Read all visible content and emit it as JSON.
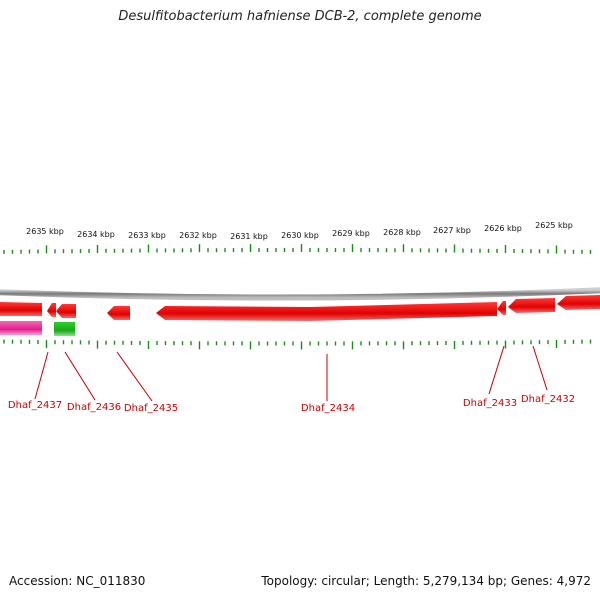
{
  "title": "Desulfitobacterium hafniense DCB-2, complete genome",
  "footer": {
    "accession": "Accession: NC_011830",
    "summary": "Topology: circular; Length: 5,279,134 bp; Genes: 4,972"
  },
  "colors": {
    "gene": "#ee0000",
    "gene_label": "#cc0000",
    "pink_track": "#ee2aa0",
    "green_track": "#22bb22",
    "tick": "#1a8a1a",
    "backbone": "#888888"
  },
  "scale_labels": [
    "2635 kbp",
    "2634 kbp",
    "2633 kbp",
    "2632 kbp",
    "2631 kbp",
    "2630 kbp",
    "2629 kbp",
    "2628 kbp",
    "2627 kbp",
    "2626 kbp",
    "2625 kbp"
  ],
  "genes": [
    "Dhaf_2437",
    "Dhaf_2436",
    "Dhaf_2435",
    "Dhaf_2434",
    "Dhaf_2433",
    "Dhaf_2432"
  ]
}
